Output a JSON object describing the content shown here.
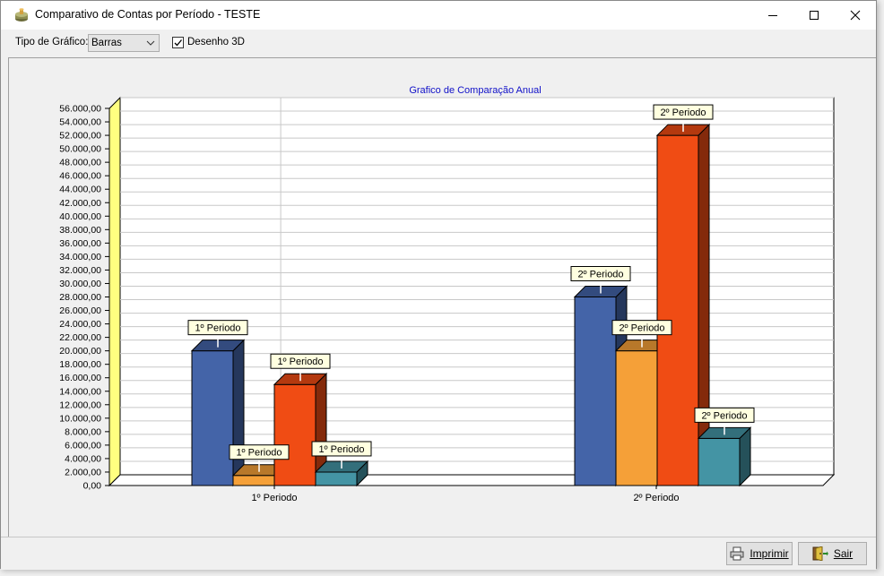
{
  "window": {
    "title": "Comparativo de Contas por Período  - TESTE"
  },
  "toolbar": {
    "chart_type_label": "Tipo de Gráfico:",
    "chart_type_value": "Barras",
    "desenho3d_label": "Desenho 3D",
    "desenho3d_checked": true
  },
  "buttons": {
    "imprimir": "Imprimir",
    "sair": "Sair"
  },
  "background_fragments": [
    "n",
    "00",
    "0"
  ],
  "colors": {
    "series_blue": "#4464a8",
    "series_orange": "#f5a038",
    "series_red": "#f04c14",
    "series_teal": "#4494a4",
    "side_wall": "#ffff80",
    "title_blue": "#1010c8",
    "label_bg": "#ffffe0"
  },
  "chart_data": {
    "type": "bar",
    "title": "Grafico de Comparação Anual",
    "categories": [
      "1º Periodo",
      "2º Periodo"
    ],
    "series": [
      {
        "values": [
          20000,
          28000
        ]
      },
      {
        "values": [
          1500,
          20000
        ]
      },
      {
        "values": [
          15000,
          52000
        ]
      },
      {
        "values": [
          2000,
          7000
        ]
      }
    ],
    "point_labels": [
      "1º Periodo",
      "2º Periodo"
    ],
    "ylim": [
      0,
      56000
    ],
    "ytick_step": 2000,
    "ytick_labels": [
      "0,00",
      "2.000,00",
      "4.000,00",
      "6.000,00",
      "8.000,00",
      "10.000,00",
      "12.000,00",
      "14.000,00",
      "16.000,00",
      "18.000,00",
      "20.000,00",
      "22.000,00",
      "24.000,00",
      "26.000,00",
      "28.000,00",
      "30.000,00",
      "32.000,00",
      "34.000,00",
      "36.000,00",
      "38.000,00",
      "40.000,00",
      "42.000,00",
      "44.000,00",
      "46.000,00",
      "48.000,00",
      "50.000,00",
      "52.000,00",
      "54.000,00",
      "56.000,00"
    ],
    "grid": true,
    "three_d": true
  }
}
